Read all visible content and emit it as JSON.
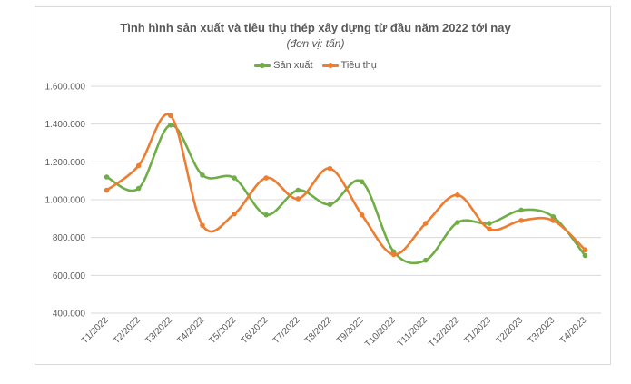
{
  "chart_data": {
    "type": "line",
    "title": "Tình hình sản xuất và tiêu thụ thép xây dựng từ đầu năm 2022 tới nay",
    "subtitle": "(đơn vị: tấn)",
    "categories": [
      "T1/2022",
      "T2/2022",
      "T3/2022",
      "T4/2022",
      "T5/2022",
      "T6/2022",
      "T7/2022",
      "T8/2022",
      "T9/2022",
      "T10/2022",
      "T11/2022",
      "T12/2022",
      "T1/2023",
      "T2/2023",
      "T3/2023",
      "T4/2023"
    ],
    "series": [
      {
        "name": "Sản xuất",
        "color": "#70ad47",
        "values": [
          1120000,
          1060000,
          1395000,
          1130000,
          1115000,
          920000,
          1050000,
          975000,
          1095000,
          725000,
          680000,
          880000,
          875000,
          945000,
          910000,
          705000
        ]
      },
      {
        "name": "Tiêu thụ",
        "color": "#ed7d31",
        "values": [
          1050000,
          1180000,
          1445000,
          865000,
          925000,
          1115000,
          1005000,
          1165000,
          920000,
          710000,
          875000,
          1025000,
          845000,
          890000,
          890000,
          735000
        ]
      }
    ],
    "ylim": [
      400000,
      1600000
    ],
    "yticks": [
      400000,
      600000,
      800000,
      1000000,
      1200000,
      1400000,
      1600000
    ],
    "ytick_labels": [
      "400.000",
      "600.000",
      "800.000",
      "1.000.000",
      "1.200.000",
      "1.400.000",
      "1.600.000"
    ],
    "grid": true,
    "legend": "top"
  }
}
